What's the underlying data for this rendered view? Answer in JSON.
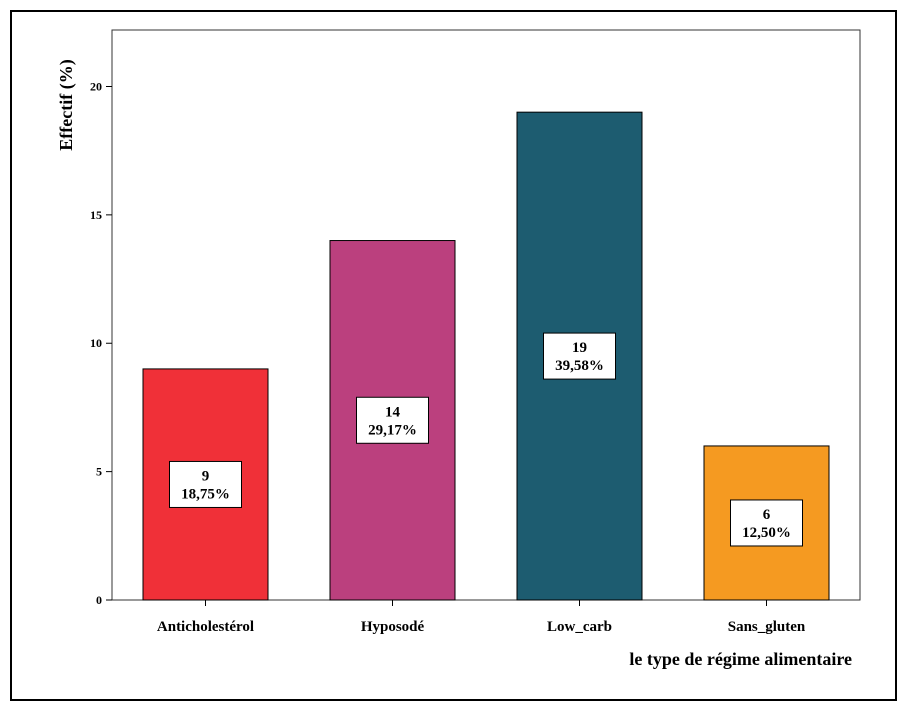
{
  "chart_data": {
    "type": "bar",
    "title": "",
    "xlabel": "le type de régime alimentaire",
    "ylabel": "Effectif (%)",
    "ylim": [
      0,
      22.2
    ],
    "yticks": [
      0,
      5,
      10,
      15,
      20
    ],
    "grid": false,
    "categories": [
      "Anticholestérol",
      "Hyposodé",
      "Low_carb",
      "Sans_gluten"
    ],
    "values": [
      9,
      14,
      19,
      6
    ],
    "percent_labels": [
      "18,75%",
      "29,17%",
      "39,58%",
      "12,50%"
    ],
    "colors": [
      "#f03038",
      "#bb407e",
      "#1d5c70",
      "#f59a21"
    ]
  }
}
